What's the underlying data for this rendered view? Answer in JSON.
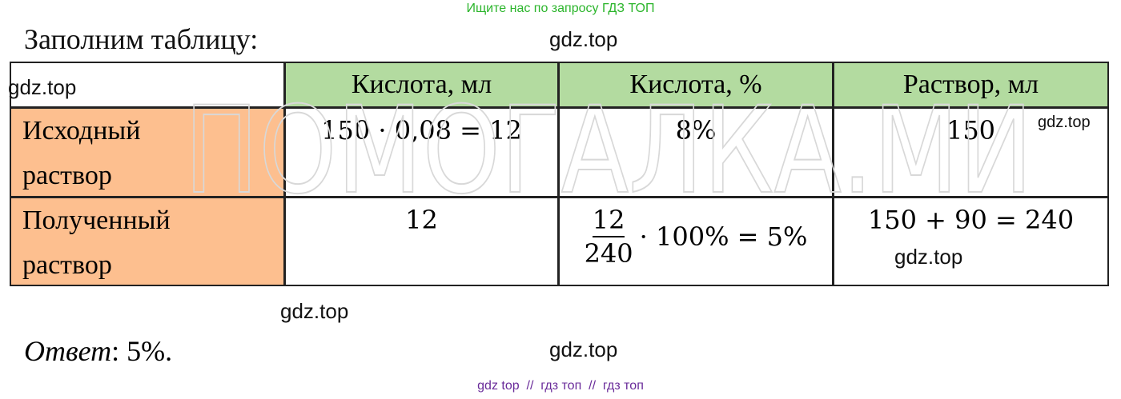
{
  "top_banner": "Ищите нас по запросу ГДЗ ТОП",
  "intro": "Заполним таблицу:",
  "table": {
    "header": [
      "Кислота, мл",
      "Кислота, %",
      "Раствор, мл"
    ],
    "rows": [
      {
        "label": [
          "Исходный",
          "раствор"
        ],
        "cells": [
          "150 · 0,08 = 12",
          "8%",
          "150"
        ]
      },
      {
        "label": [
          "Полученный",
          "раствор"
        ],
        "cells": [
          "12",
          {
            "numerator": "12",
            "denominator": "240",
            "rest": "· 100% = 5%"
          },
          "150 + 90 = 240"
        ]
      }
    ]
  },
  "answer": {
    "label": "Ответ",
    "text": ": 5%."
  },
  "big_watermark": "ПОМОГАЛКА.МИ",
  "watermarks": [
    "gdz.top",
    "gdz.top",
    "gdz.top",
    "gdz.top",
    "gdz.top",
    "gdz.top"
  ],
  "footer": "gdz top  //  гдз топ  //  гдз топ"
}
